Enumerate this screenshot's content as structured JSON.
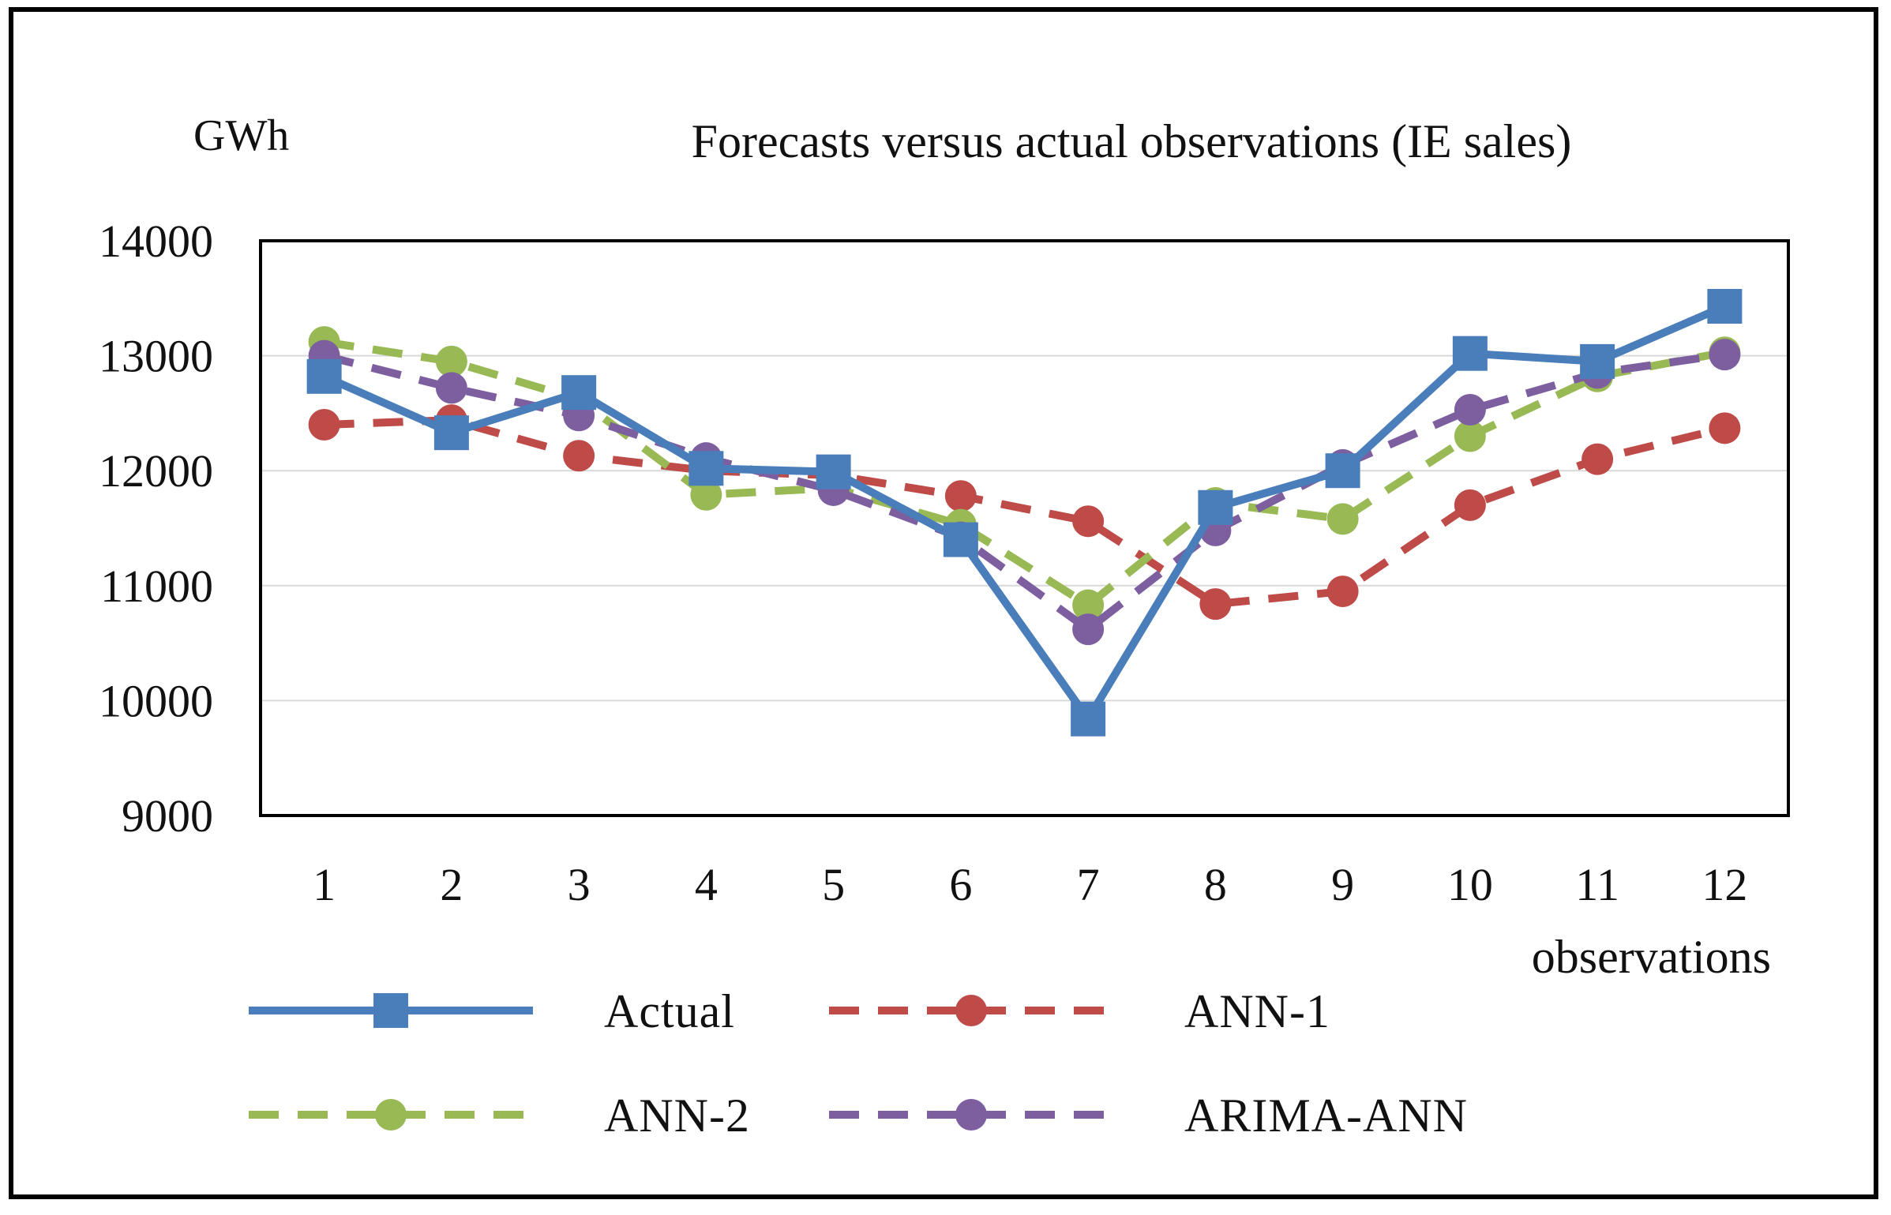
{
  "chart_data": {
    "type": "line",
    "title": "Forecasts versus actual observations (IE sales)",
    "ylabel": "GWh",
    "xlabel": "observations",
    "categories": [
      "1",
      "2",
      "3",
      "4",
      "5",
      "6",
      "7",
      "8",
      "9",
      "10",
      "11",
      "12"
    ],
    "ylim": [
      9000,
      14000
    ],
    "yticks": [
      "9000",
      "10000",
      "11000",
      "12000",
      "13000",
      "14000"
    ],
    "grid": true,
    "legend_position": "bottom",
    "series": [
      {
        "name": "Actual",
        "color": "#4a7ebb",
        "line_style": "solid",
        "marker": "square",
        "values": [
          12820,
          12330,
          12680,
          12020,
          11990,
          11400,
          9840,
          11680,
          12000,
          13020,
          12950,
          13430
        ]
      },
      {
        "name": "ANN-1",
        "color": "#be4b48",
        "line_style": "dashed",
        "marker": "circle",
        "values": [
          12400,
          12440,
          12130,
          12000,
          11960,
          11780,
          11560,
          10840,
          10950,
          11700,
          12100,
          12370
        ]
      },
      {
        "name": "ANN-2",
        "color": "#98b954",
        "line_style": "dashed",
        "marker": "circle",
        "values": [
          13120,
          12950,
          12620,
          11790,
          11850,
          11530,
          10830,
          11720,
          11580,
          12300,
          12820,
          13030
        ]
      },
      {
        "name": "ARIMA-ANN",
        "color": "#7d5fa0",
        "line_style": "dashed",
        "marker": "circle",
        "values": [
          13000,
          12720,
          12480,
          12110,
          11830,
          11420,
          10620,
          11480,
          12050,
          12530,
          12850,
          13010
        ]
      }
    ]
  }
}
